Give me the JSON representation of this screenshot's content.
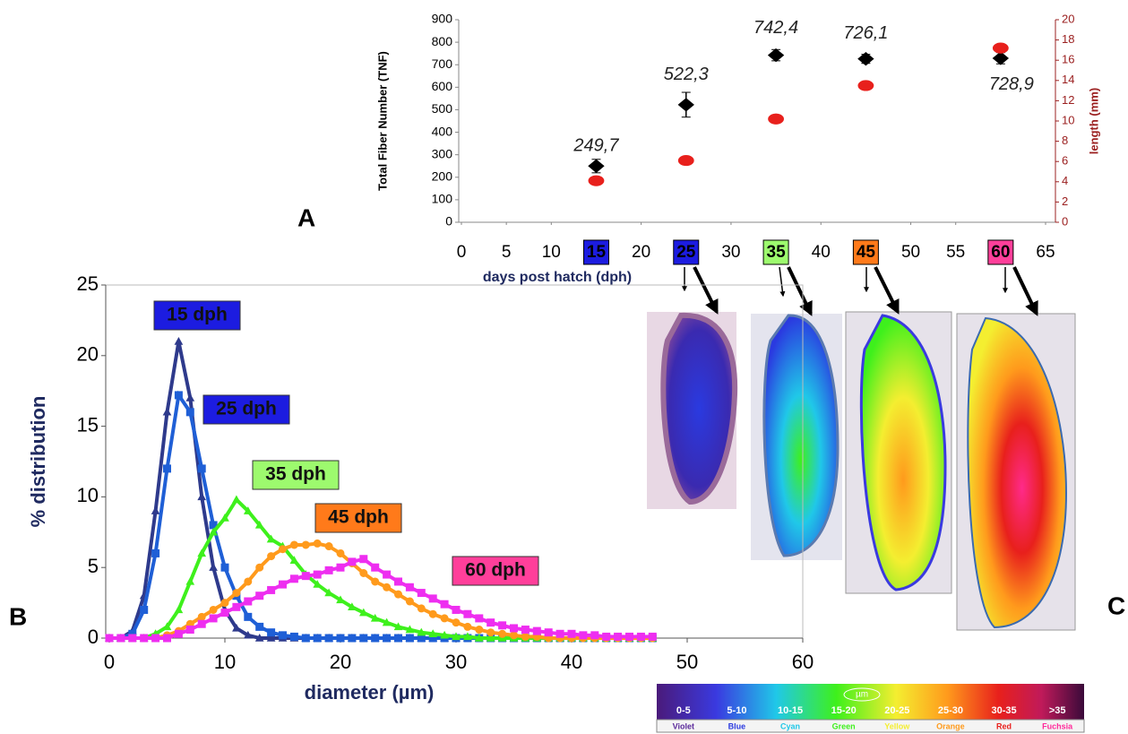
{
  "chart_data": [
    {
      "type": "scatter",
      "xlabel": "days post hatch (dph)",
      "ylabel": "Total Fiber Number (TNF)",
      "y2label": "length (mm)",
      "x": [
        15,
        25,
        35,
        45,
        60
      ],
      "xlim": [
        0,
        65
      ],
      "xticks": [
        0,
        5,
        10,
        15,
        20,
        25,
        30,
        35,
        40,
        45,
        50,
        55,
        60,
        65
      ],
      "xtick_box_colors": [
        null,
        null,
        null,
        "#1c1ce0",
        null,
        "#1c1ce0",
        null,
        "#9dfa6e",
        null,
        "#ff7a1a",
        null,
        null,
        "#ff3f9a",
        null
      ],
      "ylim": [
        0,
        900
      ],
      "yticks": [
        0,
        100,
        200,
        300,
        400,
        500,
        600,
        700,
        800,
        900
      ],
      "y2lim": [
        0,
        20
      ],
      "y2ticks": [
        0,
        2,
        4,
        6,
        8,
        10,
        12,
        14,
        16,
        18,
        20
      ],
      "y2color": "#9b2020",
      "series": [
        {
          "color": "#000000",
          "marker": "diamond",
          "values": [
            249.7,
            522.3,
            742.4,
            726.1,
            728.9
          ],
          "value_labels": [
            "249,7",
            "522,3",
            "742,4",
            "726,1",
            "728,9"
          ],
          "errors": [
            30,
            55,
            25,
            20,
            25
          ]
        },
        {
          "color": "#e8201c",
          "marker": "ellipse",
          "axis": "y2",
          "values": [
            4.1,
            6.1,
            10.2,
            13.5,
            17.2
          ],
          "errors": [
            0.3,
            0.2,
            0.2,
            0.4,
            0.2
          ]
        }
      ]
    },
    {
      "type": "line",
      "xlabel": "diameter (µm)",
      "ylabel": "% distribution",
      "x": [
        0,
        1,
        2,
        3,
        4,
        5,
        6,
        7,
        8,
        9,
        10,
        11,
        12,
        13,
        14,
        15,
        16,
        17,
        18,
        19,
        20,
        21,
        22,
        23,
        24,
        25,
        26,
        27,
        28,
        29,
        30,
        31,
        32,
        33,
        34,
        35,
        36,
        37,
        38,
        39,
        40,
        41,
        42,
        43,
        44,
        45,
        46,
        47
      ],
      "xlim": [
        0,
        60
      ],
      "xticks": [
        0,
        10,
        20,
        30,
        40,
        50,
        60
      ],
      "ylim": [
        0,
        25
      ],
      "yticks": [
        0,
        5,
        10,
        15,
        20,
        25
      ],
      "series": [
        {
          "name": "15 dph",
          "color": "#2e3a8c",
          "label_color": "#1c1ce0",
          "marker": "triangle",
          "values": [
            0,
            0,
            0.5,
            3,
            9,
            16,
            21,
            17,
            10,
            5,
            2,
            0.7,
            0.2,
            0,
            0,
            0,
            0,
            0,
            0,
            0,
            0,
            0,
            0,
            0,
            0,
            0,
            0,
            0,
            0,
            0,
            0,
            0,
            0,
            0,
            0,
            0,
            0,
            0,
            0,
            0,
            0,
            0,
            0,
            0,
            0,
            0,
            0,
            0
          ]
        },
        {
          "name": "25 dph",
          "color": "#1f5fd6",
          "label_color": "#1c1ce0",
          "marker": "square",
          "values": [
            0,
            0,
            0.3,
            2,
            6,
            12,
            17.2,
            16,
            12,
            8,
            5,
            3,
            1.5,
            0.8,
            0.4,
            0.2,
            0.1,
            0,
            0,
            0,
            0,
            0,
            0,
            0,
            0,
            0,
            0,
            0,
            0,
            0,
            0,
            0,
            0,
            0,
            0,
            0,
            0,
            0,
            0,
            0,
            0,
            0,
            0,
            0,
            0,
            0,
            0,
            0
          ]
        },
        {
          "name": "35 dph",
          "color": "#3ef01c",
          "label_color": "#9dfa6e",
          "marker": "triangle",
          "values": [
            0,
            0,
            0,
            0,
            0.3,
            0.8,
            2,
            4,
            6,
            7.5,
            8.5,
            9.8,
            9,
            8,
            7,
            6.5,
            5.5,
            4.5,
            3.8,
            3.2,
            2.7,
            2.2,
            1.8,
            1.4,
            1.1,
            0.8,
            0.6,
            0.4,
            0.3,
            0.2,
            0.1,
            0.1,
            0,
            0,
            0,
            0,
            0,
            0,
            0,
            0,
            0,
            0,
            0,
            0,
            0,
            0,
            0,
            0
          ]
        },
        {
          "name": "45 dph",
          "color": "#ff9a1c",
          "label_color": "#ff7a1a",
          "marker": "circle",
          "values": [
            0,
            0,
            0,
            0,
            0,
            0.2,
            0.5,
            1,
            1.5,
            2,
            2.5,
            3.2,
            4,
            5,
            5.8,
            6.3,
            6.6,
            6.6,
            6.7,
            6.5,
            6,
            5.3,
            4.6,
            4,
            3.6,
            3.1,
            2.6,
            2.1,
            1.7,
            1.4,
            1.1,
            0.8,
            0.6,
            0.4,
            0.3,
            0.2,
            0.1,
            0.1,
            0,
            0,
            0,
            0,
            0,
            0,
            0,
            0,
            0,
            0
          ]
        },
        {
          "name": "60 dph",
          "color": "#ee2ef0",
          "label_color": "#ff3f9a",
          "marker": "square",
          "values": [
            0,
            0,
            0,
            0,
            0,
            0,
            0.3,
            0.6,
            1,
            1.4,
            1.8,
            2.2,
            2.6,
            3,
            3.4,
            3.8,
            4.2,
            4.4,
            4.5,
            4.8,
            5,
            5.4,
            5.6,
            5,
            4.5,
            4,
            3.6,
            3.2,
            2.8,
            2.4,
            2,
            1.7,
            1.4,
            1.1,
            0.9,
            0.7,
            0.6,
            0.5,
            0.4,
            0.3,
            0.3,
            0.2,
            0.2,
            0.1,
            0.1,
            0.1,
            0.1,
            0.1
          ]
        }
      ]
    }
  ],
  "panel_labels": [
    "A",
    "B",
    "C"
  ],
  "color_scale": {
    "unit": "µm",
    "ranges": [
      "0-5",
      "5-10",
      "10-15",
      "15-20",
      "20-25",
      "25-30",
      "30-35",
      ">35"
    ],
    "names": [
      "Violet",
      "Blue",
      "Cyan",
      "Green",
      "Yellow",
      "Orange",
      "Red",
      "Fuchsia"
    ],
    "colors": [
      "#5a2a9a",
      "#2a3ae0",
      "#20c8e8",
      "#3ef01c",
      "#f4ee30",
      "#ff9a1c",
      "#e8201c",
      "#ff2a9a"
    ]
  }
}
